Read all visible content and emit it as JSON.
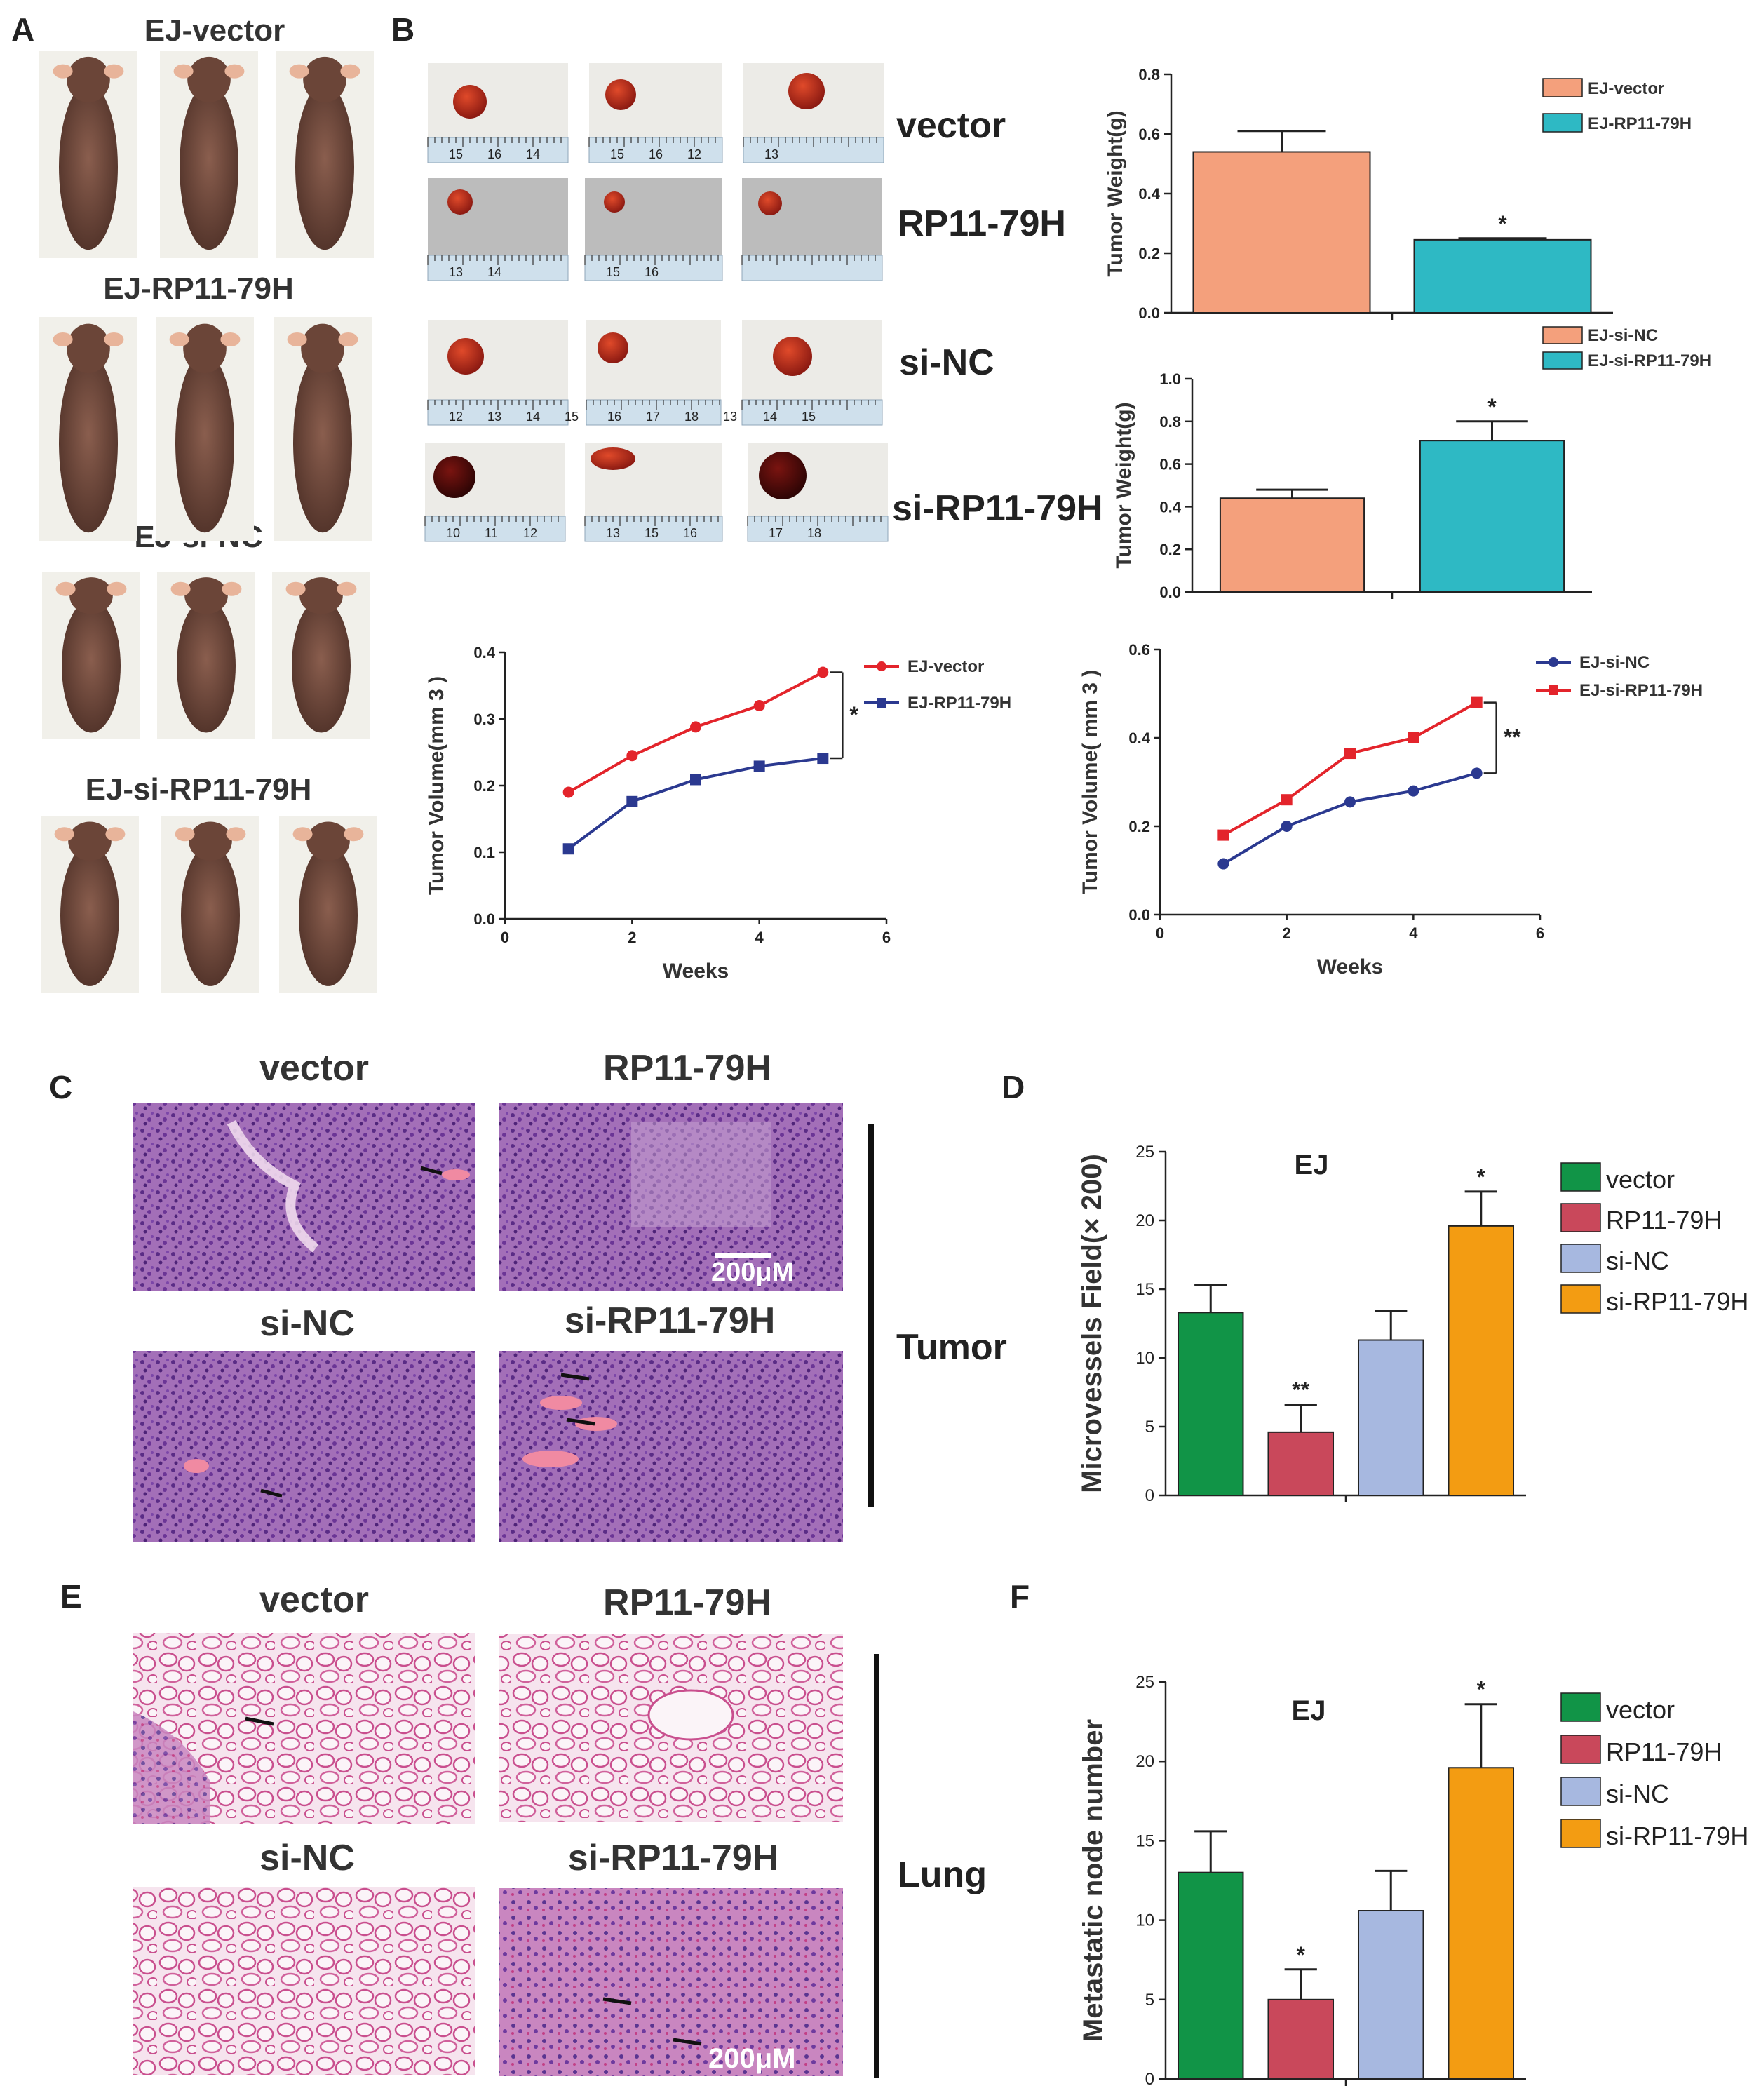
{
  "panels": {
    "A": "A",
    "B": "B",
    "C": "C",
    "D": "D",
    "E": "E",
    "F": "F"
  },
  "panel_a": {
    "groups": [
      "EJ-vector",
      "EJ-RP11-79H",
      "EJ-si-NC",
      "EJ-si-RP11-79H"
    ]
  },
  "panel_b": {
    "row_labels": [
      "vector",
      "RP11-79H",
      "si-NC",
      "si-RP11-79H"
    ],
    "ruler_labels": [
      [
        "15",
        "16",
        "14",
        "15",
        "16",
        "12",
        "13"
      ],
      [
        "13",
        "14",
        "15",
        "16"
      ],
      [
        "12",
        "13",
        "14",
        "15",
        "16",
        "17",
        "18",
        "13",
        "14",
        "15"
      ],
      [
        "10",
        "11",
        "12",
        "13",
        "15",
        "16",
        "17",
        "18"
      ]
    ]
  },
  "panel_c": {
    "labels": [
      "vector",
      "RP11-79H",
      "si-NC",
      "si-RP11-79H"
    ],
    "side_label": "Tumor",
    "scale_bar": "200μM"
  },
  "panel_e": {
    "labels": [
      "vector",
      "RP11-79H",
      "si-NC",
      "si-RP11-79H"
    ],
    "side_label": "Lung",
    "scale_bar": "200μM"
  },
  "colors": {
    "salmon": "#f4a07c",
    "teal": "#2eb9c4",
    "red": "#e3242b",
    "navy": "#2b3990",
    "green": "#119447",
    "rose": "#c9485b",
    "lightblue": "#a7b8e0",
    "orange": "#f39c12"
  },
  "chart_data": [
    {
      "id": "b-weight-1",
      "type": "bar",
      "categories": [
        "EJ-vector",
        "EJ-RP11-79H"
      ],
      "values": [
        0.54,
        0.245
      ],
      "errors": [
        0.07,
        0.005
      ],
      "annotations": [
        "",
        "*"
      ],
      "ylabel": "Tumor Weight(g)",
      "ylim": [
        0,
        0.8
      ],
      "yticks": [
        "0.0",
        "0.2",
        "0.4",
        "0.6",
        "0.8"
      ],
      "legend": [
        "EJ-vector",
        "EJ-RP11-79H"
      ]
    },
    {
      "id": "b-weight-2",
      "type": "bar",
      "categories": [
        "EJ-si-NC",
        "EJ-si-RP11-79H"
      ],
      "values": [
        0.44,
        0.71
      ],
      "errors": [
        0.04,
        0.09
      ],
      "annotations": [
        "",
        "*"
      ],
      "ylabel": "Tumor Weight(g)",
      "ylim": [
        0,
        1.0
      ],
      "yticks": [
        "0.0",
        "0.2",
        "0.4",
        "0.6",
        "0.8",
        "1.0"
      ],
      "legend": [
        "EJ-si-NC",
        "EJ-si-RP11-79H"
      ]
    },
    {
      "id": "b-volume-1",
      "type": "line",
      "x": [
        1,
        2,
        3,
        4,
        5
      ],
      "series": [
        {
          "name": "EJ-vector",
          "values": [
            0.19,
            0.245,
            0.288,
            0.32,
            0.37
          ]
        },
        {
          "name": "EJ-RP11-79H",
          "values": [
            0.105,
            0.176,
            0.209,
            0.229,
            0.241
          ]
        }
      ],
      "xlabel": "Weeks",
      "ylabel": "Tumor Volume(mm 3 )",
      "xlim": [
        0,
        6
      ],
      "ylim": [
        0,
        0.4
      ],
      "xticks": [
        "0",
        "2",
        "4",
        "6"
      ],
      "yticks": [
        "0.0",
        "0.1",
        "0.2",
        "0.3",
        "0.4"
      ],
      "significance": "*"
    },
    {
      "id": "b-volume-2",
      "type": "line",
      "x": [
        1,
        2,
        3,
        4,
        5
      ],
      "series": [
        {
          "name": "EJ-si-NC",
          "values": [
            0.115,
            0.2,
            0.255,
            0.28,
            0.32
          ]
        },
        {
          "name": "EJ-si-RP11-79H",
          "values": [
            0.18,
            0.26,
            0.365,
            0.4,
            0.48
          ]
        }
      ],
      "xlabel": "Weeks",
      "ylabel": "Tumor Volume( mm 3 )",
      "xlim": [
        0,
        6
      ],
      "ylim": [
        0,
        0.6
      ],
      "xticks": [
        "0",
        "2",
        "4",
        "6"
      ],
      "yticks": [
        "0.0",
        "0.2",
        "0.4",
        "0.6"
      ],
      "significance": "**"
    },
    {
      "id": "d-microvessels",
      "type": "bar",
      "title": "EJ",
      "categories": [
        "vector",
        "RP11-79H",
        "si-NC",
        "si-RP11-79H"
      ],
      "values": [
        13.3,
        4.6,
        11.3,
        19.6
      ],
      "errors": [
        2.0,
        2.0,
        2.1,
        2.5
      ],
      "annotations": [
        "",
        "**",
        "",
        "*"
      ],
      "ylabel": "Microvessels Field(× 200)",
      "ylim": [
        0,
        25
      ],
      "yticks": [
        "0",
        "5",
        "10",
        "15",
        "20",
        "25"
      ]
    },
    {
      "id": "f-metastatic",
      "type": "bar",
      "title": "EJ",
      "categories": [
        "vector",
        "RP11-79H",
        "si-NC",
        "si-RP11-79H"
      ],
      "values": [
        13.0,
        5.0,
        10.6,
        19.6
      ],
      "errors": [
        2.6,
        1.9,
        2.5,
        4.0
      ],
      "annotations": [
        "",
        "*",
        "",
        "*"
      ],
      "ylabel": "Metastatic node number",
      "ylim": [
        0,
        25
      ],
      "yticks": [
        "0",
        "5",
        "10",
        "15",
        "20",
        "25"
      ]
    }
  ]
}
